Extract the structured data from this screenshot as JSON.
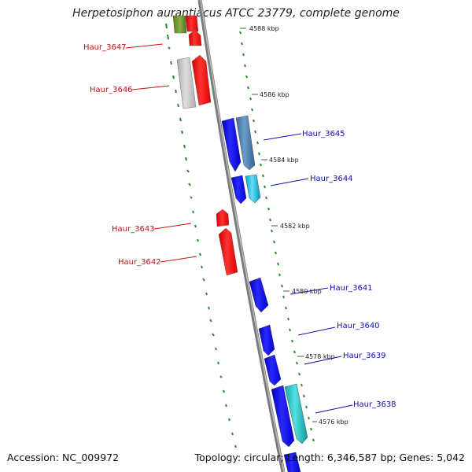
{
  "title": "Herpetosiphon aurantiacus ATCC 23779, complete genome",
  "footer": {
    "accession": "Accession: NC_009972",
    "summary": "Topology: circular; Length: 6,346,587 bp; Genes: 5,042"
  },
  "colors": {
    "forward_strand": "#ff1a1a",
    "reverse_strand": "#1414e6",
    "label_forward": "#cc1111",
    "label_reverse": "#1111aa",
    "gc_dots": "#2a8a2a",
    "backbone": "#888888"
  },
  "ticks": [
    {
      "id": "t4588",
      "label": "4588 kbp"
    },
    {
      "id": "t4586",
      "label": "4586 kbp"
    },
    {
      "id": "t4584",
      "label": "4584 kbp"
    },
    {
      "id": "t4582",
      "label": "4582 kbp"
    },
    {
      "id": "t4580",
      "label": "4580 kbp"
    },
    {
      "id": "t4578",
      "label": "4578 kbp"
    },
    {
      "id": "t4576",
      "label": "4576 kbp"
    }
  ],
  "gene_labels": [
    {
      "id": "g3647",
      "name": "Haur_3647",
      "strand": "forward"
    },
    {
      "id": "g3646",
      "name": "Haur_3646",
      "strand": "forward"
    },
    {
      "id": "g3645",
      "name": "Haur_3645",
      "strand": "reverse"
    },
    {
      "id": "g3644",
      "name": "Haur_3644",
      "strand": "reverse"
    },
    {
      "id": "g3643",
      "name": "Haur_3643",
      "strand": "forward"
    },
    {
      "id": "g3642",
      "name": "Haur_3642",
      "strand": "forward"
    },
    {
      "id": "g3641",
      "name": "Haur_3641",
      "strand": "reverse"
    },
    {
      "id": "g3640",
      "name": "Haur_3640",
      "strand": "reverse"
    },
    {
      "id": "g3639",
      "name": "Haur_3639",
      "strand": "reverse"
    },
    {
      "id": "g3638",
      "name": "Haur_3638",
      "strand": "reverse"
    }
  ]
}
